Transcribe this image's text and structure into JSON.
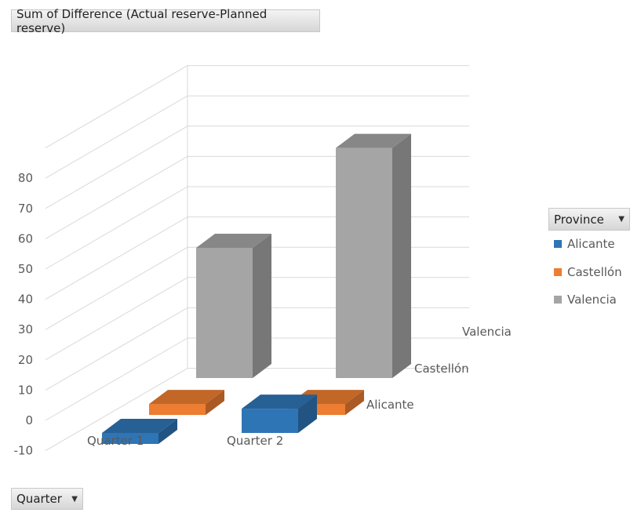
{
  "filters": {
    "value_field": "Sum of Difference (Actual reserve-Planned reserve)",
    "axis_field": "Quarter",
    "legend_field": "Province"
  },
  "colors": {
    "Alicante": "#2e75b6",
    "Castellón": "#ed7d31",
    "Valencia": "#a5a5a5"
  },
  "chart_data": {
    "type": "bar",
    "subtype": "3d-column",
    "categories": [
      "Quarter 1",
      "Quarter 2"
    ],
    "series": [
      {
        "name": "Alicante",
        "values": [
          -2,
          8
        ]
      },
      {
        "name": "Castellón",
        "values": [
          0.5,
          0.5
        ]
      },
      {
        "name": "Valencia",
        "values": [
          43,
          76
        ]
      }
    ],
    "y_ticks": [
      80,
      70,
      60,
      50,
      40,
      30,
      20,
      10,
      0,
      -10
    ],
    "ylim": [
      -10,
      90
    ],
    "grid": true,
    "legend_position": "right"
  }
}
